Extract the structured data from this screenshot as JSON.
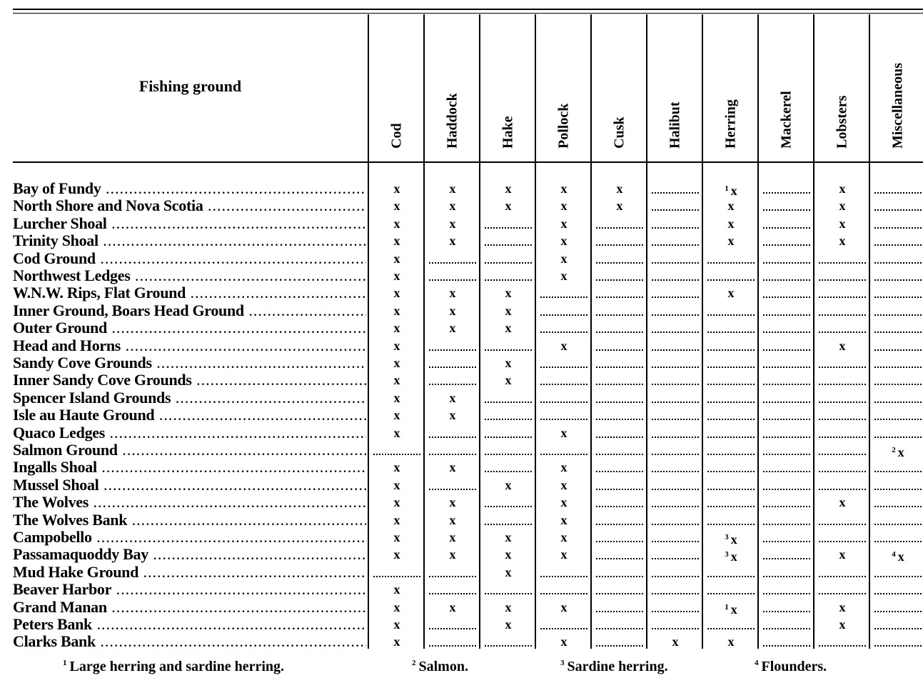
{
  "header": {
    "label": "Fishing ground",
    "columns": [
      "Cod",
      "Haddock",
      "Hake",
      "Pollock",
      "Cusk",
      "Halibut",
      "Herring",
      "Mackerel",
      "Lobsters",
      "Miscellaneous"
    ]
  },
  "rows": [
    {
      "name": "Bay of Fundy",
      "cells": [
        "x",
        "x",
        "x",
        "x",
        "x",
        "-",
        {
          "note": "1",
          "mark": "x"
        },
        "-",
        "x",
        "-"
      ]
    },
    {
      "name": "North Shore and Nova Scotia",
      "cells": [
        "x",
        "x",
        "x",
        "x",
        "x",
        "-",
        "x",
        "-",
        "x",
        "-"
      ]
    },
    {
      "name": "Lurcher Shoal",
      "cells": [
        "x",
        "x",
        "-",
        "x",
        "-",
        "-",
        "x",
        "-",
        "x",
        "-"
      ]
    },
    {
      "name": "Trinity Shoal",
      "cells": [
        "x",
        "x",
        "-",
        "x",
        "-",
        "-",
        "x",
        "-",
        "x",
        "-"
      ]
    },
    {
      "name": "Cod Ground",
      "cells": [
        "x",
        "-",
        "-",
        "x",
        "-",
        "-",
        "-",
        "-",
        "-",
        "-"
      ]
    },
    {
      "name": "Northwest Ledges",
      "cells": [
        "x",
        "-",
        "-",
        "x",
        "-",
        "-",
        "-",
        "-",
        "-",
        "-"
      ]
    },
    {
      "name": "W.N.W. Rips, Flat Ground",
      "cells": [
        "x",
        "x",
        "x",
        "-",
        "-",
        "-",
        "x",
        "-",
        "-",
        "-"
      ]
    },
    {
      "name": "Inner Ground, Boars Head Ground",
      "cells": [
        "x",
        "x",
        "x",
        "-",
        "-",
        "-",
        "-",
        "-",
        "-",
        "-"
      ]
    },
    {
      "name": "Outer Ground",
      "cells": [
        "x",
        "x",
        "x",
        "-",
        "-",
        "-",
        "-",
        "-",
        "-",
        "-"
      ]
    },
    {
      "name": "Head and Horns",
      "cells": [
        "x",
        "-",
        "-",
        "x",
        "-",
        "-",
        "-",
        "-",
        "x",
        "-"
      ]
    },
    {
      "name": "Sandy Cove Grounds",
      "cells": [
        "x",
        "-",
        "x",
        "-",
        "-",
        "-",
        "-",
        "-",
        "-",
        "-"
      ]
    },
    {
      "name": "Inner Sandy Cove Grounds",
      "cells": [
        "x",
        "-",
        "x",
        "-",
        "-",
        "-",
        "-",
        "-",
        "-",
        "-"
      ]
    },
    {
      "name": "Spencer Island Grounds",
      "cells": [
        "x",
        "x",
        "-",
        "-",
        "-",
        "-",
        "-",
        "-",
        "-",
        "-"
      ]
    },
    {
      "name": "Isle au Haute Ground",
      "cells": [
        "x",
        "x",
        "-",
        "-",
        "-",
        "-",
        "-",
        "-",
        "-",
        "-"
      ]
    },
    {
      "name": "Quaco Ledges",
      "cells": [
        "x",
        "-",
        "-",
        "x",
        "-",
        "-",
        "-",
        "-",
        "-",
        "-"
      ]
    },
    {
      "name": "Salmon Ground",
      "cells": [
        "-",
        "-",
        "-",
        "-",
        "-",
        "-",
        "-",
        "-",
        "-",
        {
          "note": "2",
          "mark": "x"
        }
      ]
    },
    {
      "name": "Ingalls Shoal",
      "cells": [
        "x",
        "x",
        "-",
        "x",
        "-",
        "-",
        "-",
        "-",
        "-",
        "-"
      ]
    },
    {
      "name": "Mussel Shoal",
      "cells": [
        "x",
        "-",
        "x",
        "x",
        "-",
        "-",
        "-",
        "-",
        "-",
        "-"
      ]
    },
    {
      "name": "The Wolves",
      "cells": [
        "x",
        "x",
        "-",
        "x",
        "-",
        "-",
        "-",
        "-",
        "x",
        "-"
      ]
    },
    {
      "name": "The Wolves Bank",
      "cells": [
        "x",
        "x",
        "-",
        "x",
        "-",
        "-",
        "-",
        "-",
        "-",
        "-"
      ]
    },
    {
      "name": "Campobello",
      "cells": [
        "x",
        "x",
        "x",
        "x",
        "-",
        "-",
        {
          "note": "3",
          "mark": "x"
        },
        "-",
        "-",
        "-"
      ]
    },
    {
      "name": "Passamaquoddy Bay",
      "cells": [
        "x",
        "x",
        "x",
        "x",
        "-",
        "-",
        {
          "note": "3",
          "mark": "x"
        },
        "-",
        "x",
        {
          "note": "4",
          "mark": "x"
        }
      ]
    },
    {
      "name": "Mud Hake Ground",
      "cells": [
        "-",
        "-",
        "x",
        "-",
        "-",
        "-",
        "-",
        "-",
        "-",
        "-"
      ]
    },
    {
      "name": "Beaver Harbor",
      "cells": [
        "x",
        "-",
        "-",
        "-",
        "-",
        "-",
        "-",
        "-",
        "-",
        "-"
      ]
    },
    {
      "name": "Grand Manan",
      "cells": [
        "x",
        "x",
        "x",
        "x",
        "-",
        "-",
        {
          "note": "1",
          "mark": "x"
        },
        "-",
        "x",
        "-"
      ]
    },
    {
      "name": "Peters Bank",
      "cells": [
        "x",
        "-",
        "x",
        "-",
        "-",
        "-",
        "-",
        "-",
        "x",
        "-"
      ]
    },
    {
      "name": "Clarks Bank",
      "cells": [
        "x",
        "-",
        "-",
        "x",
        "-",
        "x",
        "x",
        "-",
        "-",
        "-"
      ]
    }
  ],
  "footnotes": [
    {
      "num": "1",
      "text": "Large herring and sardine herring."
    },
    {
      "num": "2",
      "text": "Salmon."
    },
    {
      "num": "3",
      "text": "Sardine herring."
    },
    {
      "num": "4",
      "text": "Flounders."
    }
  ]
}
